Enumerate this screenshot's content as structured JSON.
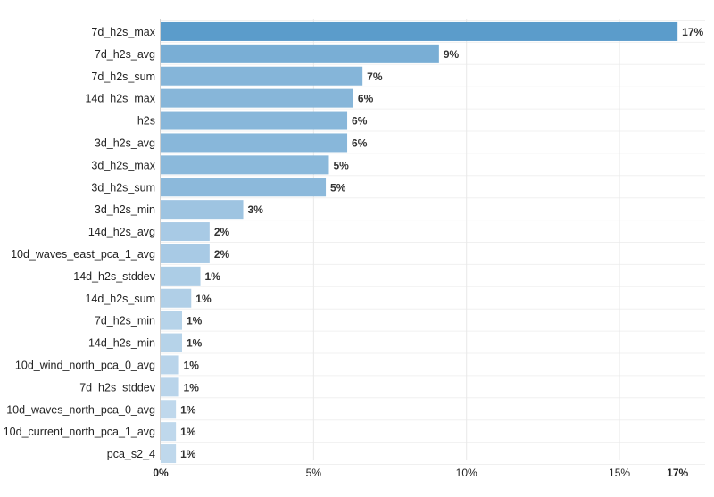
{
  "chart_data": {
    "type": "bar",
    "orientation": "horizontal",
    "categories": [
      "7d_h2s_max",
      "7d_h2s_avg",
      "7d_h2s_sum",
      "14d_h2s_max",
      "h2s",
      "3d_h2s_avg",
      "3d_h2s_max",
      "3d_h2s_sum",
      "3d_h2s_min",
      "14d_h2s_avg",
      "10d_waves_east_pca_1_avg",
      "14d_h2s_stddev",
      "14d_h2s_sum",
      "7d_h2s_min",
      "14d_h2s_min",
      "10d_wind_north_pca_0_avg",
      "7d_h2s_stddev",
      "10d_waves_north_pca_0_avg",
      "10d_current_north_pca_1_avg",
      "pca_s2_4"
    ],
    "values": [
      16.9,
      9.1,
      6.6,
      6.3,
      6.1,
      6.1,
      5.5,
      5.4,
      2.7,
      1.6,
      1.6,
      1.3,
      1.0,
      0.7,
      0.7,
      0.6,
      0.6,
      0.5,
      0.5,
      0.5
    ],
    "value_labels": [
      "17%",
      "9%",
      "7%",
      "6%",
      "6%",
      "6%",
      "5%",
      "5%",
      "3%",
      "2%",
      "2%",
      "1%",
      "1%",
      "1%",
      "1%",
      "1%",
      "1%",
      "1%",
      "1%",
      "1%"
    ],
    "x_ticks": [
      {
        "value": 0,
        "label": "0%",
        "bold": true
      },
      {
        "value": 5,
        "label": "5%",
        "bold": false
      },
      {
        "value": 10,
        "label": "10%",
        "bold": false
      },
      {
        "value": 15,
        "label": "15%",
        "bold": false
      },
      {
        "value": 16.9,
        "label": "17%",
        "bold": true
      }
    ],
    "xlim": [
      0,
      17.8
    ],
    "title": "",
    "xlabel": "",
    "ylabel": "",
    "grid": true,
    "colors": {
      "max_bar": "#5b9ccb",
      "min_bar": "#bfd8ec"
    }
  }
}
